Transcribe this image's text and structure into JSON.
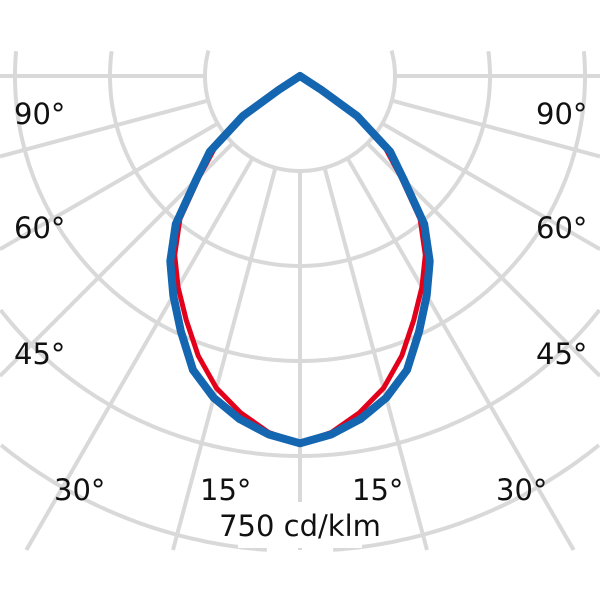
{
  "chart_data": {
    "type": "polar-line",
    "unit_label": "750 cd/klm",
    "radial_max": 750,
    "radial_step": 150,
    "angle_tick_labels": {
      "left": [
        "90°",
        "60°",
        "45°",
        "30°",
        "15°"
      ],
      "right": [
        "15°",
        "30°",
        "45°",
        "60°",
        "90°"
      ]
    },
    "angle_grid_step_deg": 15,
    "grid": true,
    "symmetric": true,
    "series": [
      {
        "color": "#e3001b",
        "angles": [
          0,
          5,
          10,
          15,
          20,
          25,
          30,
          35,
          40,
          45,
          50,
          55,
          57,
          60
        ],
        "values": [
          580,
          565,
          540,
          510,
          470,
          425,
          385,
          345,
          295,
          225,
          175,
          100,
          30,
          0
        ]
      },
      {
        "color": "#1466b0",
        "angles": [
          0,
          5,
          10,
          15,
          20,
          25,
          30,
          35,
          40,
          45,
          50,
          55,
          57,
          60
        ],
        "values": [
          580,
          568,
          550,
          526,
          494,
          445,
          400,
          357,
          305,
          232,
          186,
          110,
          40,
          0
        ]
      }
    ],
    "grid_color": "#d9d9d9"
  }
}
